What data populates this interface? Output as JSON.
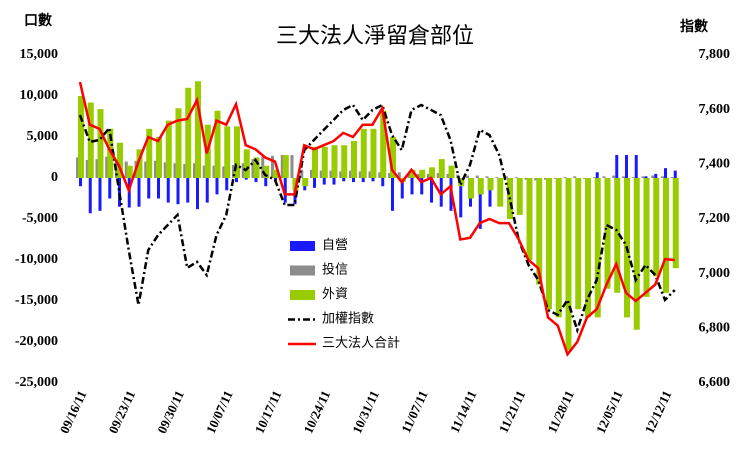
{
  "chart_data": {
    "type": "bar",
    "title": "三大法人淨留倉部位",
    "y_label": "口數",
    "y2_label": "指數",
    "categories": [
      "09/16/11",
      null,
      null,
      null,
      null,
      "09/23/11",
      null,
      null,
      null,
      null,
      "09/30/11",
      null,
      null,
      null,
      null,
      "10/07/11",
      null,
      null,
      null,
      null,
      "10/17/11",
      null,
      null,
      null,
      null,
      "10/24/11",
      null,
      null,
      null,
      null,
      "10/31/11",
      null,
      null,
      null,
      null,
      "11/07/11",
      null,
      null,
      null,
      null,
      "11/14/11",
      null,
      null,
      null,
      null,
      "11/21/11",
      null,
      null,
      null,
      null,
      "11/28/11",
      null,
      null,
      null,
      null,
      "12/05/11",
      null,
      null,
      null,
      null,
      "12/12/11",
      null
    ],
    "series": [
      {
        "name": "自營",
        "color": "#1a1aff",
        "values": [
          -1000,
          -4300,
          -4000,
          -2500,
          -3500,
          -3600,
          -3500,
          -2500,
          -2500,
          -3000,
          -3200,
          -3000,
          -3800,
          -3000,
          -2000,
          -1500,
          -500,
          -200,
          -500,
          -1000,
          -300,
          -3000,
          -3200,
          -1500,
          -1200,
          -800,
          -800,
          -400,
          -500,
          -500,
          -400,
          -1000,
          -4000,
          -2500,
          -2000,
          -2000,
          -3000,
          -3500,
          -4000,
          -4800,
          -3500,
          -6200,
          -3500,
          -2000,
          -1000,
          -1000,
          -800,
          -1000,
          -1200,
          -800,
          -300,
          -200,
          -400,
          700,
          -500,
          2800,
          2800,
          2800,
          200,
          500,
          1200,
          900
        ]
      },
      {
        "name": "投信",
        "color": "#8c8c8c",
        "values": [
          2500,
          2200,
          2300,
          2600,
          2200,
          2000,
          2100,
          2000,
          2100,
          1900,
          1800,
          1700,
          1800,
          1500,
          1500,
          1400,
          1600,
          1800,
          2300,
          2600,
          2700,
          2800,
          2800,
          1000,
          1000,
          900,
          900,
          800,
          900,
          800,
          800,
          700,
          600,
          700,
          600,
          500,
          500,
          600,
          500,
          400,
          300,
          300,
          200,
          100,
          200,
          100,
          -200,
          -300,
          -200,
          -100,
          100,
          200,
          -100,
          100,
          200,
          300,
          200,
          100,
          200,
          300,
          200,
          100
        ]
      },
      {
        "name": "外資",
        "color": "#99cc00",
        "values": [
          10000,
          9200,
          8400,
          6000,
          4300,
          1500,
          3500,
          6000,
          5000,
          7000,
          8500,
          11000,
          11800,
          6500,
          8200,
          6300,
          6300,
          3500,
          2500,
          1500,
          1000,
          2800,
          -1500,
          -1000,
          3800,
          3800,
          4000,
          4000,
          4500,
          6000,
          6000,
          8200,
          5000,
          -500,
          1000,
          1000,
          1300,
          2300,
          1500,
          -1000,
          -2500,
          -2000,
          -1500,
          -3500,
          -5000,
          -4500,
          -10000,
          -13000,
          -16000,
          -17000,
          -21000,
          -16000,
          -17000,
          -17000,
          -13500,
          -14000,
          -17000,
          -18500,
          -14500,
          -12000,
          -14000,
          -11000
        ]
      },
      {
        "name": "加權指數",
        "color": "#000000",
        "type": "line",
        "axis": "y2",
        "values": [
          7580,
          7482,
          7489,
          7533,
          7306,
          7086,
          6885,
          7086,
          7141,
          7178,
          7215,
          7021,
          7043,
          6995,
          7141,
          7215,
          7398,
          7379,
          7416,
          7361,
          7343,
          7251,
          7251,
          7452,
          7489,
          7526,
          7562,
          7599,
          7617,
          7562,
          7599,
          7617,
          7507,
          7452,
          7599,
          7617,
          7599,
          7580,
          7489,
          7324,
          7398,
          7526,
          7507,
          7434,
          7288,
          7123,
          7032,
          6977,
          6867,
          6849,
          6904,
          6794,
          6904,
          6977,
          7178,
          7160,
          7105,
          6977,
          7032,
          6995,
          6904,
          6940
        ]
      },
      {
        "name": "三大法人合計",
        "color": "#ff0000",
        "type": "line",
        "values": [
          11700,
          6500,
          6000,
          3500,
          1500,
          -1500,
          2000,
          5000,
          4500,
          6500,
          7000,
          7200,
          9500,
          3000,
          7000,
          6500,
          9000,
          4000,
          3500,
          2500,
          2000,
          -2000,
          -2000,
          4000,
          3500,
          4000,
          4500,
          5500,
          5000,
          6500,
          6500,
          8500,
          1000,
          -500,
          1000,
          -500,
          0,
          -2000,
          -1000,
          -7500,
          -7300,
          -5500,
          -5000,
          -5500,
          -5500,
          -7500,
          -10000,
          -11000,
          -17000,
          -18000,
          -21500,
          -20000,
          -17000,
          -16000,
          -13000,
          -10500,
          -14000,
          -15000,
          -14000,
          -13000,
          -9900,
          -10000
        ]
      }
    ],
    "ylim": [
      -25000,
      15000
    ],
    "yticks": [
      {
        "value": -25000,
        "label": "-25,000"
      },
      {
        "value": -20000,
        "label": "-20,000"
      },
      {
        "value": -15000,
        "label": "-15,000"
      },
      {
        "value": -10000,
        "label": "-10,000"
      },
      {
        "value": -5000,
        "label": "-5,000"
      },
      0,
      {
        "value": 5000,
        "label": "5,000"
      },
      {
        "value": 10000,
        "label": "10,000"
      },
      {
        "value": 15000,
        "label": "15,000"
      }
    ],
    "y2lim": [
      6600,
      7800
    ],
    "y2ticks": [
      {
        "value": 6600,
        "label": "6,600"
      },
      {
        "value": 6800,
        "label": "6,800"
      },
      {
        "value": 7000,
        "label": "7,000"
      },
      {
        "value": 7200,
        "label": "7,200"
      },
      {
        "value": 7400,
        "label": "7,400"
      },
      {
        "value": 7600,
        "label": "7,600"
      },
      {
        "value": 7800,
        "label": "7,800"
      }
    ]
  }
}
